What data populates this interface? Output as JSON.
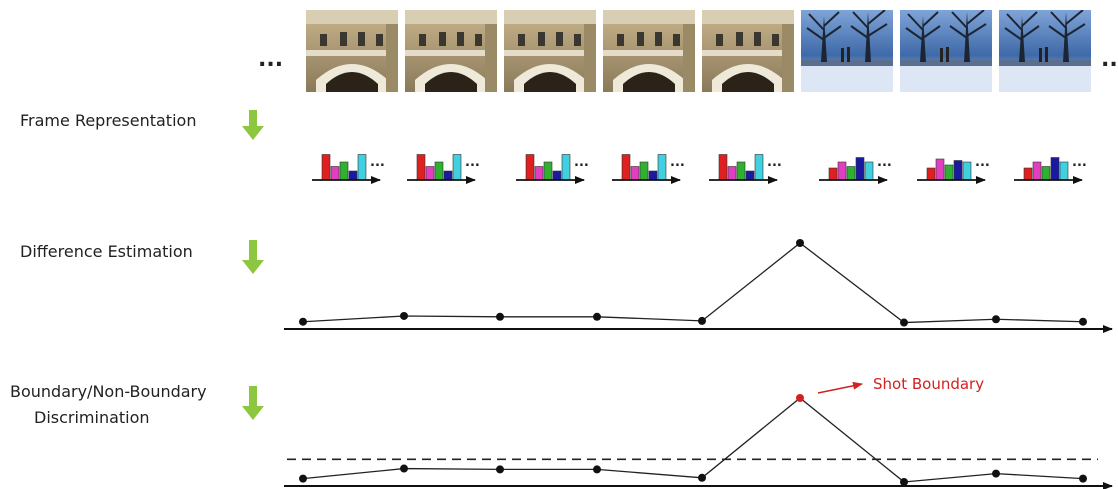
{
  "stages": [
    {
      "label": "Frame Representation"
    },
    {
      "label": "Difference Estimation"
    },
    {
      "label": "Boundary/Non-Boundary",
      "label_line2": "Discrimination"
    }
  ],
  "ellipsis": "...",
  "frames": [
    {
      "scene": "building-arch"
    },
    {
      "scene": "building-arch"
    },
    {
      "scene": "building-arch"
    },
    {
      "scene": "building-arch"
    },
    {
      "scene": "building-arch"
    },
    {
      "scene": "snowy-park"
    },
    {
      "scene": "snowy-park"
    },
    {
      "scene": "snowy-park"
    }
  ],
  "histograms": [
    {
      "values": [
        0.85,
        0.45,
        0.6,
        0.3,
        0.85
      ]
    },
    {
      "values": [
        0.85,
        0.45,
        0.6,
        0.3,
        0.85
      ]
    },
    {
      "values": [
        0.85,
        0.45,
        0.6,
        0.3,
        0.85
      ]
    },
    {
      "values": [
        0.85,
        0.45,
        0.6,
        0.3,
        0.85
      ]
    },
    {
      "values": [
        0.85,
        0.45,
        0.6,
        0.3,
        0.85
      ]
    },
    {
      "values": [
        0.4,
        0.6,
        0.45,
        0.75,
        0.6
      ]
    },
    {
      "values": [
        0.4,
        0.7,
        0.5,
        0.65,
        0.6
      ]
    },
    {
      "values": [
        0.4,
        0.6,
        0.45,
        0.75,
        0.6
      ]
    }
  ],
  "histogram_colors": [
    "#e02020",
    "#e040c0",
    "#30b030",
    "#1a1aa0",
    "#40d0e0"
  ],
  "difference_values": [
    0.04,
    0.11,
    0.1,
    0.1,
    0.05,
    1.0,
    0.03,
    0.07,
    0.04
  ],
  "boundary_values": [
    0.04,
    0.16,
    0.15,
    0.15,
    0.05,
    1.0,
    0.0,
    0.1,
    0.04
  ],
  "boundary_threshold": 0.27,
  "boundary_point_index": 5,
  "shot_boundary_label": "Shot Boundary",
  "colors": {
    "arrow_green": "#8dc63f",
    "boundary_red": "#d42020",
    "axis": "#111111",
    "point": "#111111"
  }
}
